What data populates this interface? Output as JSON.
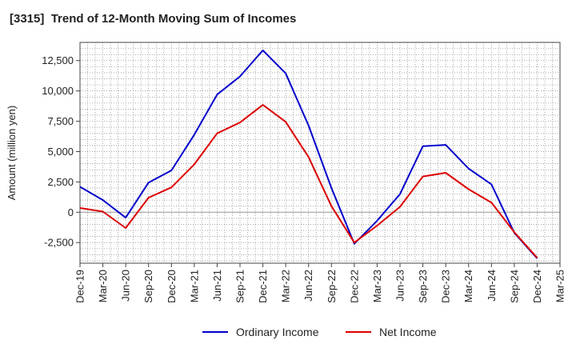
{
  "chart_data": {
    "type": "line",
    "title": "[3315]  Trend of 12-Month Moving Sum of Incomes",
    "ylabel": "Amount (million yen)",
    "xlabel": "",
    "categories": [
      "Dec-19",
      "Mar-20",
      "Jun-20",
      "Sep-20",
      "Dec-20",
      "Mar-21",
      "Jun-21",
      "Sep-21",
      "Dec-21",
      "Mar-22",
      "Jun-22",
      "Sep-22",
      "Dec-22",
      "Mar-23",
      "Jun-23",
      "Sep-23",
      "Dec-23",
      "Mar-24",
      "Jun-24",
      "Sep-24",
      "Dec-24",
      "Mar-25"
    ],
    "ylim": [
      -4200,
      14000
    ],
    "yticks": [
      -2500,
      0,
      2500,
      5000,
      7500,
      10000,
      12500
    ],
    "ytick_labels": [
      "-2,500",
      "0",
      "2,500",
      "5,000",
      "7,500",
      "10,000",
      "12,500"
    ],
    "grid": true,
    "legend_position": "bottom-center",
    "series": [
      {
        "name": "Ordinary Income",
        "color": "#0000cc",
        "values": [
          2100,
          1000,
          -450,
          2450,
          3450,
          6400,
          9700,
          11200,
          13350,
          11450,
          7150,
          2000,
          -2600,
          -700,
          1500,
          5450,
          5550,
          3600,
          2300,
          -1700,
          -3800,
          null
        ]
      },
      {
        "name": "Net Income",
        "color": "#dd0000",
        "values": [
          350,
          50,
          -1300,
          1200,
          2050,
          3950,
          6500,
          7400,
          8850,
          7450,
          4550,
          500,
          -2500,
          -1100,
          450,
          2950,
          3250,
          1900,
          800,
          -1650,
          -3750,
          null
        ]
      }
    ]
  }
}
